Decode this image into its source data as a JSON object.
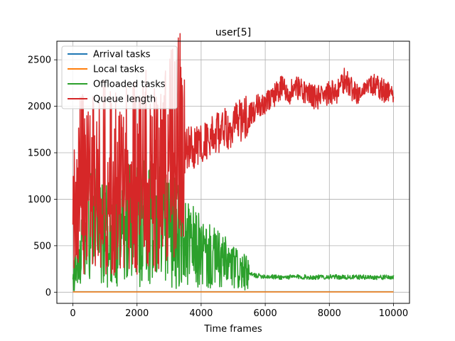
{
  "chart_data": {
    "type": "line",
    "title": "user[5]",
    "xlabel": "Time frames",
    "ylabel": "",
    "xlim": [
      -500,
      10500
    ],
    "ylim": [
      -120,
      2700
    ],
    "xticks": [
      0,
      2000,
      4000,
      6000,
      8000,
      10000
    ],
    "yticks": [
      0,
      500,
      1000,
      1500,
      2000,
      2500
    ],
    "grid": true,
    "legend_position": "top-left",
    "series": [
      {
        "name": "Arrival tasks",
        "color": "#1f77b4",
        "x": [
          0,
          10000
        ],
        "y": [
          5,
          5
        ]
      },
      {
        "name": "Local tasks",
        "color": "#ff7f0e",
        "x": [
          0,
          10000
        ],
        "y": [
          3,
          3
        ]
      },
      {
        "name": "Offloaded tasks",
        "color": "#2ca02c",
        "x": [
          0,
          300,
          600,
          900,
          1200,
          1500,
          1800,
          2100,
          2400,
          2700,
          3000,
          3300,
          3600,
          3900,
          4200,
          4500,
          4800,
          5100,
          5400,
          5700,
          6000,
          6500,
          7000,
          7500,
          8000,
          8500,
          9000,
          9500,
          10000
        ],
        "y": [
          150,
          600,
          700,
          650,
          600,
          750,
          700,
          760,
          780,
          830,
          700,
          600,
          500,
          450,
          380,
          350,
          300,
          250,
          200,
          180,
          170,
          160,
          165,
          160,
          165,
          160,
          162,
          160,
          160
        ]
      },
      {
        "name": "Queue length",
        "color": "#d62728",
        "x": [
          0,
          250,
          500,
          750,
          1000,
          1250,
          1500,
          1750,
          2000,
          2250,
          2500,
          2750,
          3000,
          3250,
          3500,
          3750,
          4000,
          4250,
          4500,
          4750,
          5000,
          5250,
          5500,
          5750,
          6000,
          6250,
          6500,
          6750,
          7000,
          7250,
          7500,
          7750,
          8000,
          8250,
          8500,
          8750,
          9000,
          9250,
          9500,
          9750,
          10000
        ],
        "y": [
          900,
          1200,
          1150,
          1200,
          1250,
          1150,
          1200,
          1250,
          1250,
          1300,
          1350,
          1400,
          1450,
          1500,
          1550,
          1550,
          1600,
          1650,
          1700,
          1750,
          1800,
          1850,
          1900,
          2000,
          2050,
          2100,
          2200,
          2150,
          2200,
          2150,
          2100,
          2100,
          2150,
          2150,
          2300,
          2150,
          2150,
          2250,
          2200,
          2150,
          2150
        ]
      }
    ]
  }
}
